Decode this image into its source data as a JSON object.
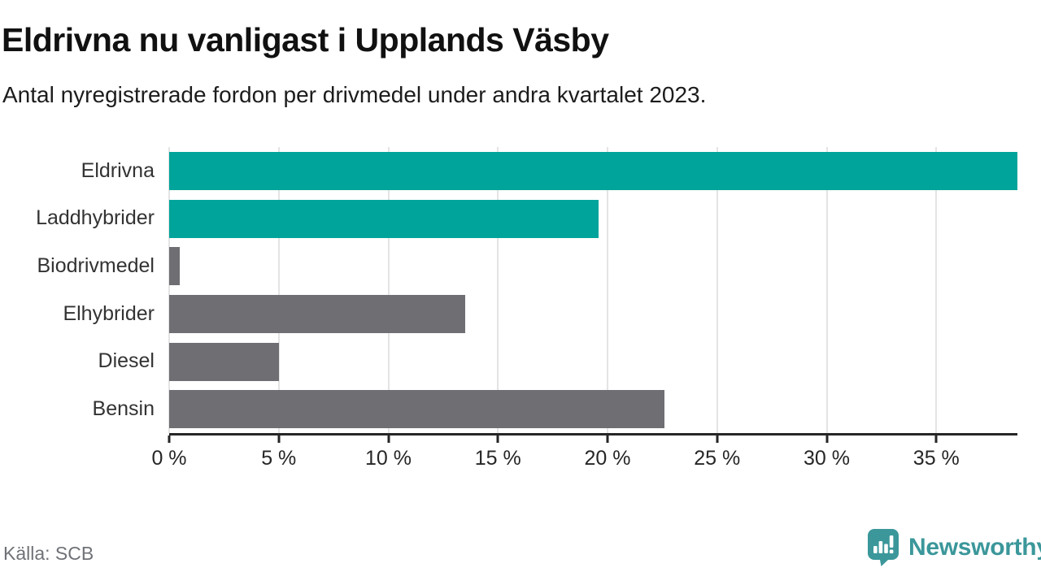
{
  "header": {
    "title": "Eldrivna nu vanligast i Upplands Väsby",
    "subtitle": "Antal nyregistrerade fordon per drivmedel under andra kvartalet 2023."
  },
  "footer": {
    "source": "Källa: SCB",
    "brand": "Newsworthy"
  },
  "colors": {
    "accent_teal": "#00a49a",
    "muted_gray": "#6e6e73",
    "gridline": "#e4e4e4",
    "axis": "#262626",
    "source_text": "#6f7276",
    "brand_teal": "#3b979a"
  },
  "chart_data": {
    "type": "bar",
    "orientation": "horizontal",
    "title": "Eldrivna nu vanligast i Upplands Väsby",
    "subtitle": "Antal nyregistrerade fordon per drivmedel under andra kvartalet 2023.",
    "categories": [
      "Eldrivna",
      "Laddhybrider",
      "Biodrivmedel",
      "Elhybrider",
      "Diesel",
      "Bensin"
    ],
    "values": [
      38.7,
      19.6,
      0.5,
      13.5,
      5.0,
      22.6
    ],
    "unit": "%",
    "bar_colors": [
      "#00a49a",
      "#00a49a",
      "#6e6e73",
      "#6e6e73",
      "#6e6e73",
      "#6e6e73"
    ],
    "highlighted_categories": [
      "Eldrivna",
      "Laddhybrider"
    ],
    "xlabel": "",
    "ylabel": "",
    "xlim": [
      0,
      38.7
    ],
    "x_ticks": [
      0,
      5,
      10,
      15,
      20,
      25,
      30,
      35
    ],
    "x_tick_labels": [
      "0 %",
      "5 %",
      "10 %",
      "15 %",
      "20 %",
      "25 %",
      "30 %",
      "35 %"
    ],
    "grid": true,
    "legend_position": "none"
  }
}
